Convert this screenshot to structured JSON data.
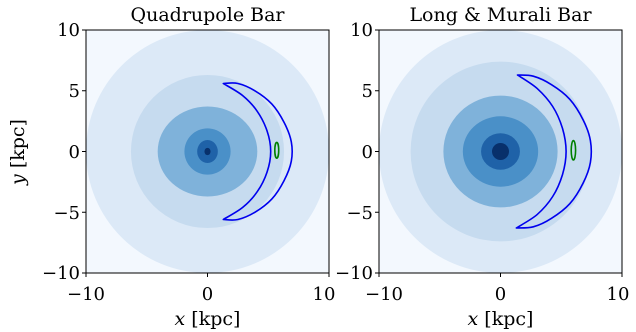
{
  "figure": {
    "ylabel_var": "y",
    "ylabel_unit": " [kpc]"
  },
  "chart_data": [
    {
      "type": "contour",
      "title": "Quadrupole Bar",
      "xlabel_var": "x",
      "xlabel_unit": " [kpc]",
      "xlim": [
        -10,
        10
      ],
      "ylim": [
        -10,
        10
      ],
      "xticks": [
        "−10",
        "0",
        "10"
      ],
      "yticks": [
        "10",
        "5",
        "0",
        "−5",
        "−10"
      ],
      "xtick_values": [
        -10,
        0,
        10
      ],
      "ytick_values": [
        10,
        5,
        0,
        -5,
        -10
      ],
      "density_levels": [
        {
          "level": 1,
          "color": "#f3f8fe",
          "rx": 10.0,
          "ry": 10.0
        },
        {
          "level": 2,
          "color": "#dce9f7",
          "rx": 10.0,
          "ry": 10.0
        },
        {
          "level": 3,
          "color": "#c6dbef",
          "rx": 6.3,
          "ry": 6.3
        },
        {
          "level": 4,
          "color": "#7fb2da",
          "rx": 4.1,
          "ry": 3.7
        },
        {
          "level": 5,
          "color": "#4a90c8",
          "rx": 1.9,
          "ry": 1.9
        },
        {
          "level": 6,
          "color": "#1f62a8",
          "rx": 0.85,
          "ry": 0.95
        },
        {
          "level": 7,
          "color": "#08306b",
          "rx": 0.25,
          "ry": 0.3
        }
      ],
      "orbit_blue": {
        "color": "#0000ee",
        "outer": [
          [
            1.3,
            5.6
          ],
          [
            2.5,
            5.6
          ],
          [
            3.9,
            5.0
          ],
          [
            5.3,
            3.9
          ],
          [
            6.3,
            2.4
          ],
          [
            6.9,
            0.8
          ],
          [
            6.9,
            -0.8
          ],
          [
            6.3,
            -2.4
          ],
          [
            5.3,
            -3.9
          ],
          [
            3.9,
            -5.0
          ],
          [
            2.5,
            -5.6
          ],
          [
            1.3,
            -5.6
          ]
        ],
        "inner": [
          [
            1.3,
            -5.6
          ],
          [
            2.9,
            -4.6
          ],
          [
            4.1,
            -3.3
          ],
          [
            4.9,
            -1.7
          ],
          [
            5.2,
            0
          ],
          [
            4.9,
            1.7
          ],
          [
            4.1,
            3.3
          ],
          [
            2.9,
            4.6
          ],
          [
            1.3,
            5.6
          ]
        ]
      },
      "orbit_green": {
        "color": "#008000",
        "cx": 5.7,
        "cy": 0.1,
        "rx": 0.16,
        "ry": 0.65
      }
    },
    {
      "type": "contour",
      "title": "Long & Murali Bar",
      "xlabel_var": "x",
      "xlabel_unit": " [kpc]",
      "xlim": [
        -10,
        10
      ],
      "ylim": [
        -10,
        10
      ],
      "xticks": [
        "−10",
        "0",
        "10"
      ],
      "yticks": [
        "10",
        "5",
        "0",
        "−5",
        "−10"
      ],
      "xtick_values": [
        -10,
        0,
        10
      ],
      "ytick_values": [
        10,
        5,
        0,
        -5,
        -10
      ],
      "density_levels": [
        {
          "level": 1,
          "color": "#f3f8fe",
          "rx": 10.0,
          "ry": 10.0
        },
        {
          "level": 2,
          "color": "#dce9f7",
          "rx": 10.0,
          "ry": 10.0
        },
        {
          "level": 3,
          "color": "#c6dbef",
          "rx": 7.4,
          "ry": 7.4
        },
        {
          "level": 4,
          "color": "#7fb2da",
          "rx": 4.7,
          "ry": 4.6
        },
        {
          "level": 5,
          "color": "#4a90c8",
          "rx": 3.1,
          "ry": 2.9
        },
        {
          "level": 6,
          "color": "#1f62a8",
          "rx": 1.6,
          "ry": 1.5
        },
        {
          "level": 7,
          "color": "#08306b",
          "rx": 0.7,
          "ry": 0.7
        }
      ],
      "orbit_blue": {
        "color": "#0000ee",
        "outer": [
          [
            1.4,
            6.3
          ],
          [
            2.7,
            6.2
          ],
          [
            4.2,
            5.5
          ],
          [
            5.7,
            4.3
          ],
          [
            6.8,
            2.6
          ],
          [
            7.4,
            0.9
          ],
          [
            7.4,
            -0.9
          ],
          [
            6.8,
            -2.6
          ],
          [
            5.7,
            -4.3
          ],
          [
            4.2,
            -5.5
          ],
          [
            2.7,
            -6.2
          ],
          [
            1.3,
            -6.3
          ]
        ],
        "inner": [
          [
            1.3,
            -6.3
          ],
          [
            3.0,
            -5.2
          ],
          [
            4.3,
            -3.7
          ],
          [
            5.1,
            -1.9
          ],
          [
            5.4,
            0
          ],
          [
            5.1,
            1.9
          ],
          [
            4.3,
            3.7
          ],
          [
            3.0,
            5.2
          ],
          [
            1.4,
            6.3
          ]
        ]
      },
      "orbit_green": {
        "color": "#008000",
        "cx": 6.0,
        "cy": 0.1,
        "rx": 0.18,
        "ry": 0.8
      }
    }
  ]
}
